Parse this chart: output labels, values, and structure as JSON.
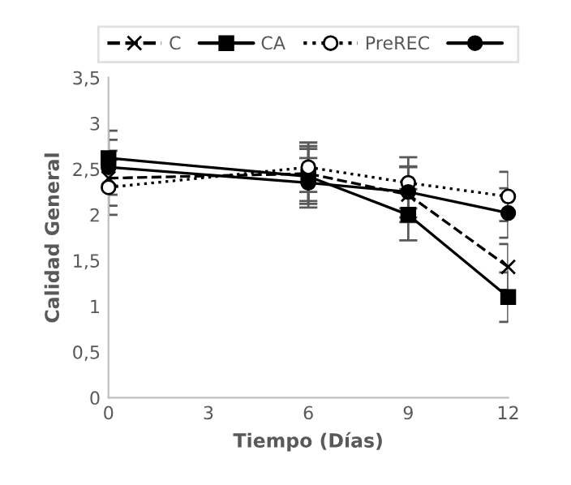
{
  "chart_data": {
    "type": "line",
    "xlabel": "Tiempo (Días)",
    "ylabel": "Calidad General",
    "x": [
      0,
      6,
      9,
      12
    ],
    "series": [
      {
        "name": "C",
        "color": "#000000",
        "marker": "cross",
        "line_style": "dashed",
        "values": [
          2.4,
          2.45,
          2.22,
          1.43
        ],
        "errors": [
          0.3,
          0.3,
          0.3,
          0.25
        ]
      },
      {
        "name": "CA",
        "color": "#000000",
        "marker": "square",
        "line_style": "solid",
        "values": [
          2.62,
          2.42,
          2.0,
          1.1
        ],
        "errors": [
          0.3,
          0.3,
          0.28,
          0.27
        ]
      },
      {
        "name": "PreREC",
        "color": "#000000",
        "marker": "circle",
        "line_style": "dotted",
        "values": [
          2.3,
          2.52,
          2.35,
          2.2
        ],
        "errors": [
          0.3,
          0.27,
          0.28,
          0.27
        ]
      },
      {
        "color": "#000000",
        "marker": "circle",
        "line_style": "solid",
        "values": [
          2.52,
          2.35,
          2.25,
          2.02
        ],
        "errors": [
          0.3,
          0.27,
          0.28,
          0.27
        ]
      }
    ],
    "xlim": [
      0,
      12
    ],
    "xticks": [
      0,
      3,
      6,
      9,
      12
    ],
    "ylim": [
      0,
      3.5
    ],
    "yticks": [
      0,
      {
        "value": 0.5,
        "label": "0,5"
      },
      1,
      {
        "value": 1.5,
        "label": "1,5"
      },
      2,
      {
        "value": 2.5,
        "label": "2,5"
      },
      3,
      {
        "value": 3.5,
        "label": "3,5"
      }
    ],
    "grid": false,
    "legend": "top"
  }
}
